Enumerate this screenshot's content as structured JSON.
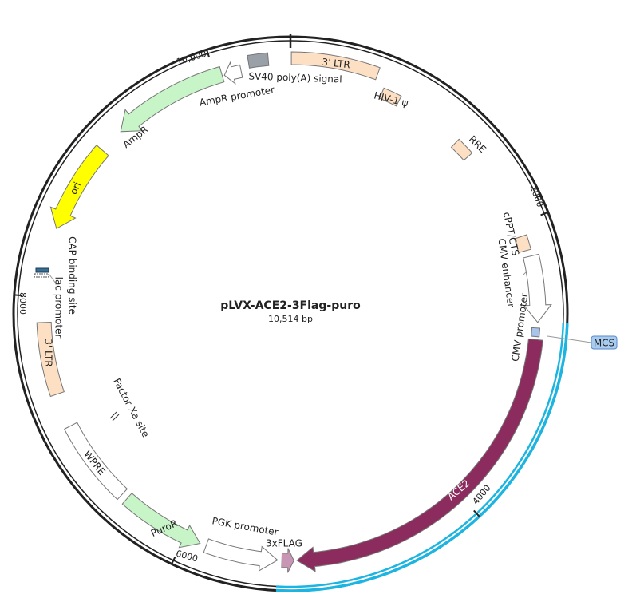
{
  "map": {
    "title": "pLVX-ACE2-3Flag-puro",
    "length": "10,514 bp",
    "ticks": [
      "10,000",
      "2000",
      "4000",
      "6000",
      "8000"
    ],
    "features": {
      "ltr3_top": "3' LTR",
      "hiv": "HIV-1 ψ",
      "rre": "RRE",
      "cppt": "cPPT/CTS",
      "cmv_enh": "CMV enhancer",
      "cmv_prom": "CMV promoter",
      "mcs": "MCS",
      "ace2": "ACE2",
      "flag": "3xFLAG",
      "pgk": "PGK promoter",
      "puro": "PuroR",
      "wpre": "WPRE",
      "factor_xa": "Factor Xa site",
      "ltr3_left": "3' LTR",
      "lac": "lac promoter",
      "cap": "CAP binding site",
      "ori": "ori",
      "ampr": "AmpR",
      "ampr_prom": "AmpR promoter",
      "sv40": "SV40 poly(A) signal"
    }
  }
}
